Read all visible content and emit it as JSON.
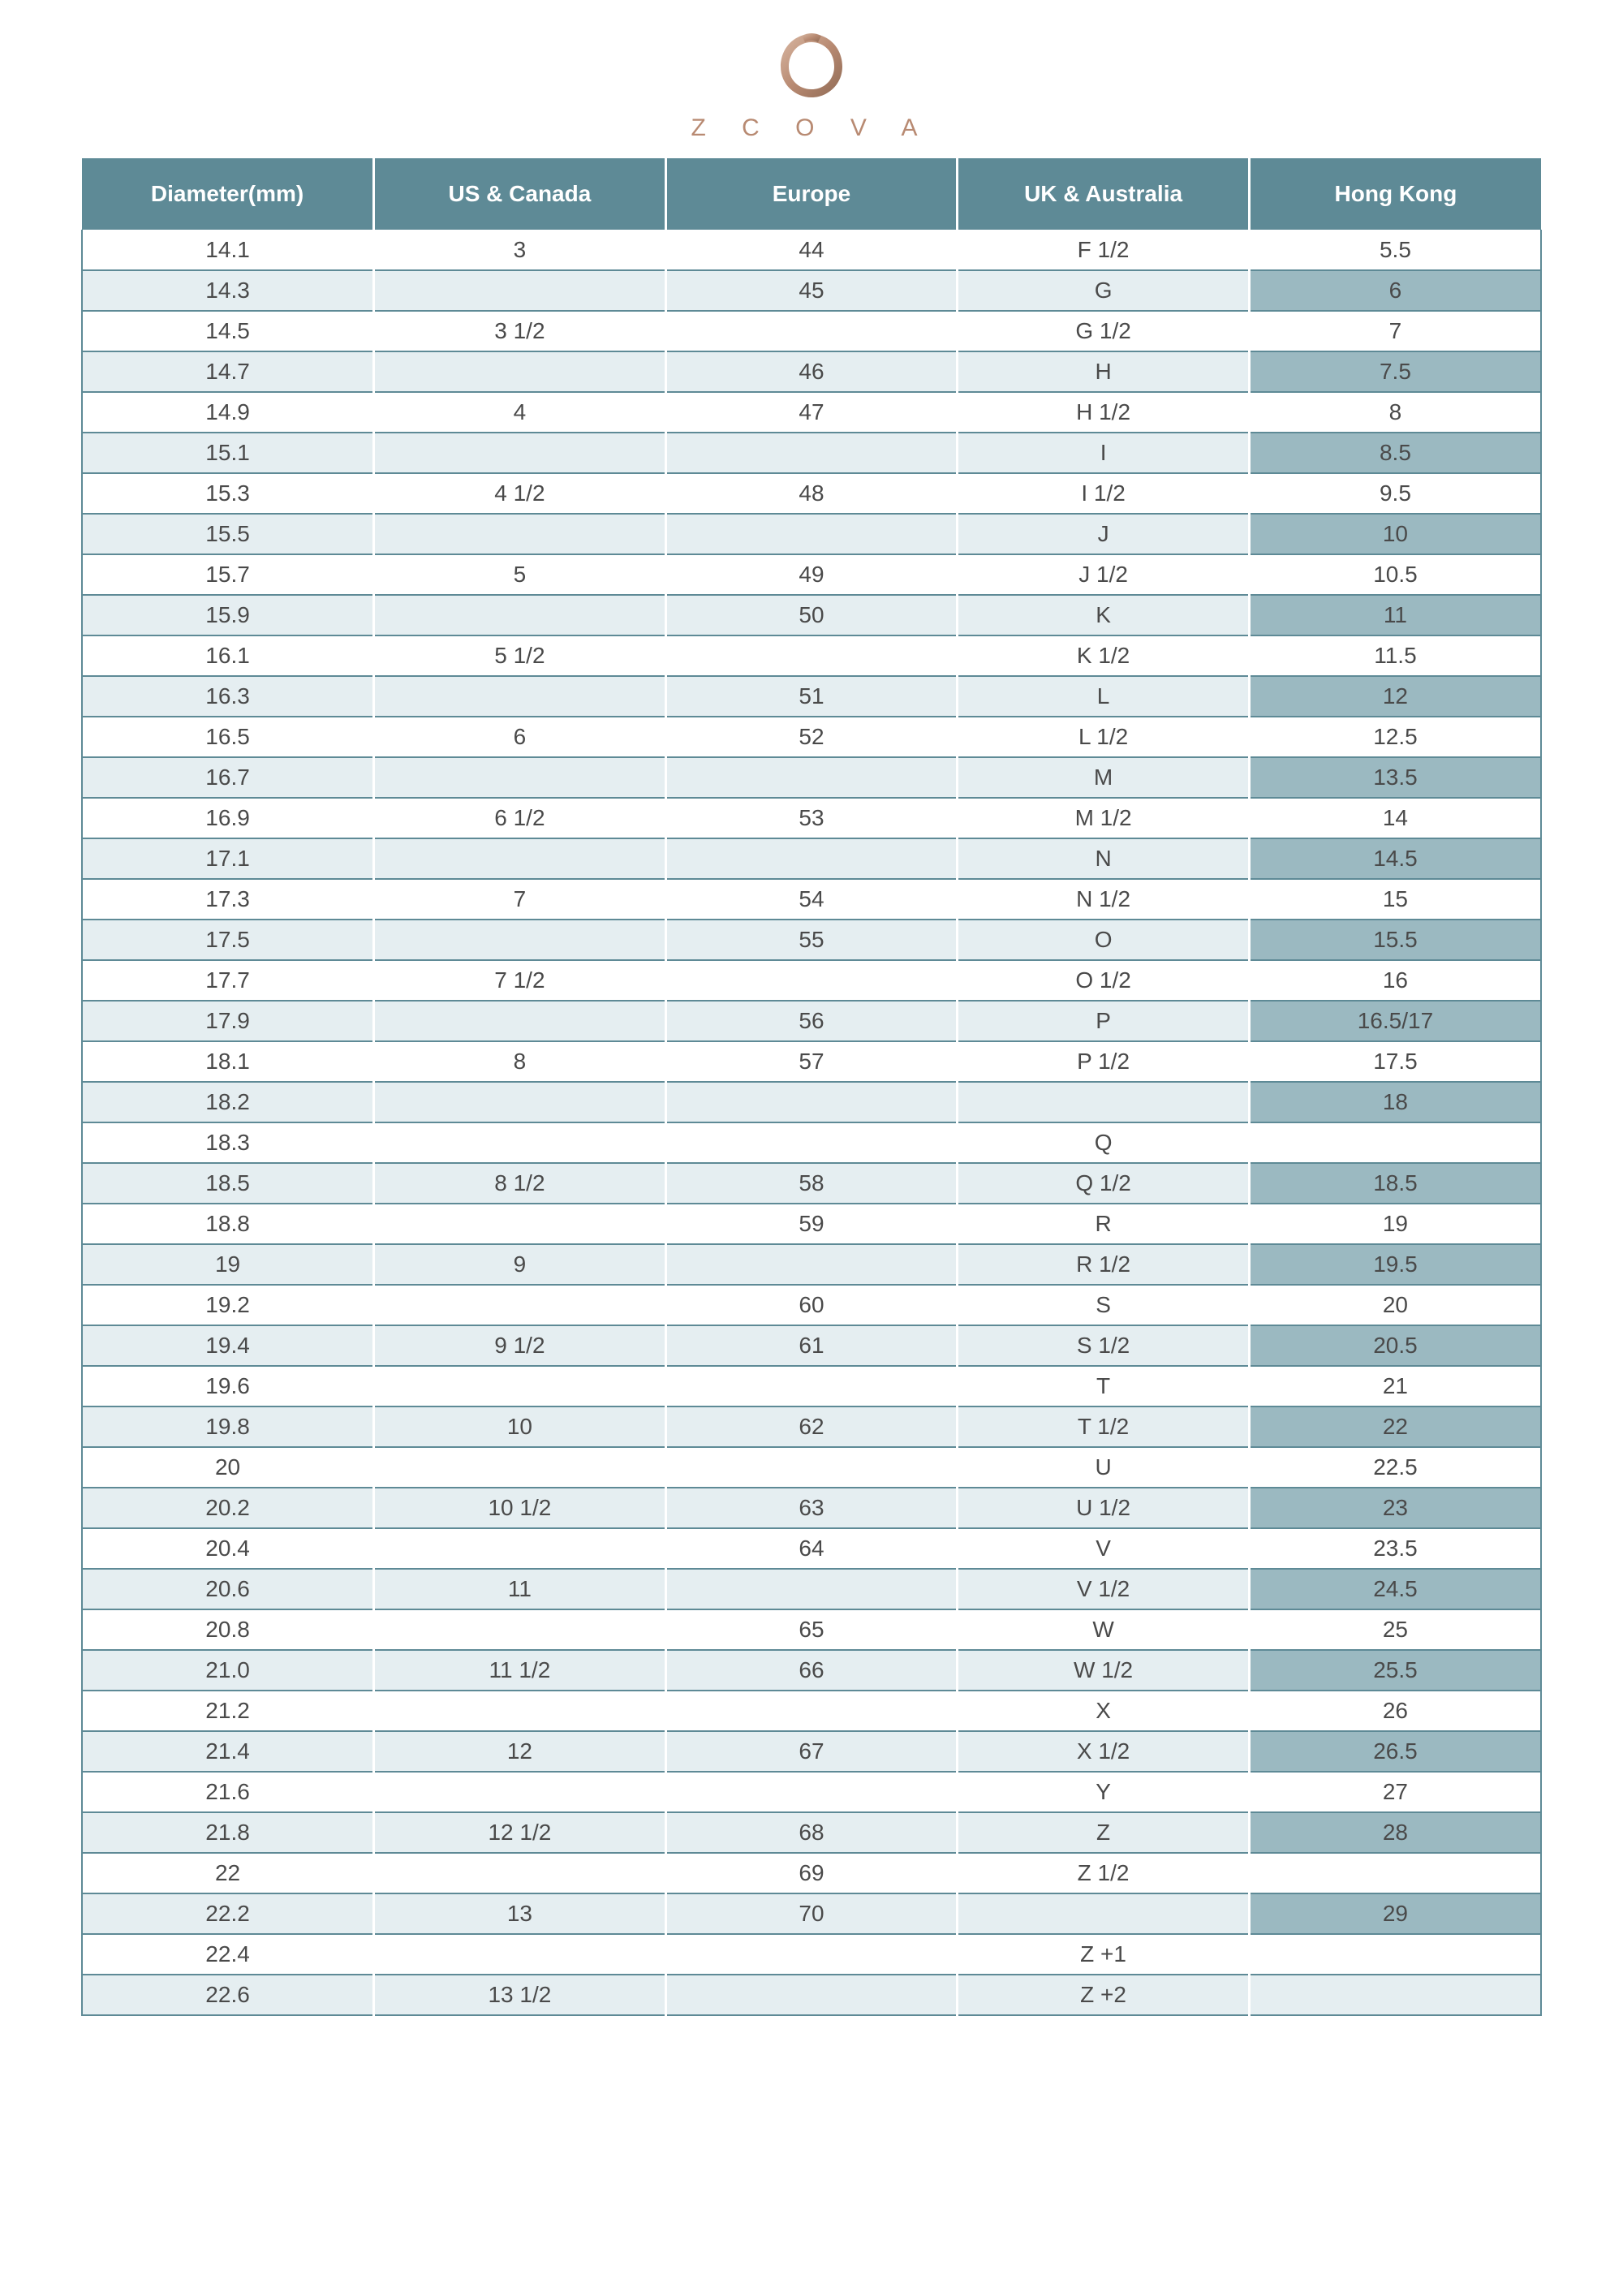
{
  "brand_text": "Z C O V A",
  "brand_color": "#b88a72",
  "colors": {
    "header_bg": "#5e8a96",
    "header_text": "#ffffff",
    "row_light": "#ffffff",
    "row_med": "#e5eef1",
    "row_dark": "#9bb9c1",
    "border": "#5e8a96",
    "text": "#4a4a4a",
    "cell_border": "#ffffff",
    "outer_border": "#5e8a96"
  },
  "font": {
    "header_size": 28,
    "cell_size": 28,
    "brand_size": 30,
    "brand_letter_spacing": 18
  },
  "columns": [
    "Diameter(mm)",
    "US & Canada",
    "Europe",
    "UK & Australia",
    "Hong Kong"
  ],
  "column_keys": [
    "dia",
    "us",
    "eu",
    "uk",
    "hk"
  ],
  "rows": [
    {
      "dia": "14.1",
      "us": "3",
      "eu": "44",
      "uk": "F  1/2",
      "hk": "5.5",
      "shade": 0
    },
    {
      "dia": "14.3",
      "us": "",
      "eu": "45",
      "uk": "G",
      "hk": "6",
      "shade": 2
    },
    {
      "dia": "14.5",
      "us": "3  1/2",
      "eu": "",
      "uk": "G  1/2",
      "hk": "7",
      "shade": 0
    },
    {
      "dia": "14.7",
      "us": "",
      "eu": "46",
      "uk": "H",
      "hk": "7.5",
      "shade": 2
    },
    {
      "dia": "14.9",
      "us": "4",
      "eu": "47",
      "uk": "H  1/2",
      "hk": "8",
      "shade": 0
    },
    {
      "dia": "15.1",
      "us": "",
      "eu": "",
      "uk": "I",
      "hk": "8.5",
      "shade": 2
    },
    {
      "dia": "15.3",
      "us": "4  1/2",
      "eu": "48",
      "uk": "I   1/2",
      "hk": "9.5",
      "shade": 0
    },
    {
      "dia": "15.5",
      "us": "",
      "eu": "",
      "uk": "J",
      "hk": "10",
      "shade": 2
    },
    {
      "dia": "15.7",
      "us": "5",
      "eu": "49",
      "uk": "J   1/2",
      "hk": "10.5",
      "shade": 0
    },
    {
      "dia": "15.9",
      "us": "",
      "eu": "50",
      "uk": "K",
      "hk": "11",
      "shade": 2
    },
    {
      "dia": "16.1",
      "us": "5  1/2",
      "eu": "",
      "uk": "K  1/2",
      "hk": "11.5",
      "shade": 0
    },
    {
      "dia": "16.3",
      "us": "",
      "eu": "51",
      "uk": "L",
      "hk": "12",
      "shade": 2
    },
    {
      "dia": "16.5",
      "us": "6",
      "eu": "52",
      "uk": "L   1/2",
      "hk": "12.5",
      "shade": 0
    },
    {
      "dia": "16.7",
      "us": "",
      "eu": "",
      "uk": "M",
      "hk": "13.5",
      "shade": 2
    },
    {
      "dia": "16.9",
      "us": "6  1/2",
      "eu": "53",
      "uk": "M 1/2",
      "hk": "14",
      "shade": 0
    },
    {
      "dia": "17.1",
      "us": "",
      "eu": "",
      "uk": "N",
      "hk": "14.5",
      "shade": 2
    },
    {
      "dia": "17.3",
      "us": "7",
      "eu": "54",
      "uk": "N  1/2",
      "hk": "15",
      "shade": 0
    },
    {
      "dia": "17.5",
      "us": "",
      "eu": "55",
      "uk": "O",
      "hk": "15.5",
      "shade": 2
    },
    {
      "dia": "17.7",
      "us": "7  1/2",
      "eu": "",
      "uk": "O 1/2",
      "hk": "16",
      "shade": 0
    },
    {
      "dia": "17.9",
      "us": "",
      "eu": "56",
      "uk": "P",
      "hk": "16.5/17",
      "shade": 2
    },
    {
      "dia": "18.1",
      "us": "8",
      "eu": "57",
      "uk": "P  1/2",
      "hk": "17.5",
      "shade": 0
    },
    {
      "dia": "18.2",
      "us": "",
      "eu": "",
      "uk": "",
      "hk": "18",
      "shade": 2
    },
    {
      "dia": "18.3",
      "us": "",
      "eu": "",
      "uk": "Q",
      "hk": "",
      "shade": 0
    },
    {
      "dia": "18.5",
      "us": "8  1/2",
      "eu": "58",
      "uk": "Q 1/2",
      "hk": "18.5",
      "shade": 2
    },
    {
      "dia": "18.8",
      "us": "",
      "eu": "59",
      "uk": "R",
      "hk": "19",
      "shade": 0
    },
    {
      "dia": "19",
      "us": "9",
      "eu": "",
      "uk": "R  1/2",
      "hk": "19.5",
      "shade": 2
    },
    {
      "dia": "19.2",
      "us": "",
      "eu": "60",
      "uk": "S",
      "hk": "20",
      "shade": 0
    },
    {
      "dia": "19.4",
      "us": "9  1/2",
      "eu": "61",
      "uk": "S  1/2",
      "hk": "20.5",
      "shade": 2
    },
    {
      "dia": "19.6",
      "us": "",
      "eu": "",
      "uk": "T",
      "hk": "21",
      "shade": 0
    },
    {
      "dia": "19.8",
      "us": "10",
      "eu": "62",
      "uk": "T  1/2",
      "hk": "22",
      "shade": 2
    },
    {
      "dia": "20",
      "us": "",
      "eu": "",
      "uk": "U",
      "hk": "22.5",
      "shade": 0
    },
    {
      "dia": "20.2",
      "us": "10   1/2",
      "eu": "63",
      "uk": "U  1/2",
      "hk": "23",
      "shade": 2
    },
    {
      "dia": "20.4",
      "us": "",
      "eu": "64",
      "uk": "V",
      "hk": "23.5",
      "shade": 0
    },
    {
      "dia": "20.6",
      "us": "11",
      "eu": "",
      "uk": "V  1/2",
      "hk": "24.5",
      "shade": 2
    },
    {
      "dia": "20.8",
      "us": "",
      "eu": "65",
      "uk": "W",
      "hk": "25",
      "shade": 0
    },
    {
      "dia": "21.0",
      "us": "11   1/2",
      "eu": "66",
      "uk": "W 1/2",
      "hk": "25.5",
      "shade": 2
    },
    {
      "dia": "21.2",
      "us": "",
      "eu": "",
      "uk": "X",
      "hk": "26",
      "shade": 0
    },
    {
      "dia": "21.4",
      "us": "12",
      "eu": "67",
      "uk": "X  1/2",
      "hk": "26.5",
      "shade": 2
    },
    {
      "dia": "21.6",
      "us": "",
      "eu": "",
      "uk": "Y",
      "hk": "27",
      "shade": 0
    },
    {
      "dia": "21.8",
      "us": "12   1/2",
      "eu": "68",
      "uk": "Z",
      "hk": "28",
      "shade": 2
    },
    {
      "dia": "22",
      "us": "",
      "eu": "69",
      "uk": "Z  1/2",
      "hk": "",
      "shade": 0
    },
    {
      "dia": "22.2",
      "us": "13",
      "eu": "70",
      "uk": "",
      "hk": "29",
      "shade": 2
    },
    {
      "dia": "22.4",
      "us": "",
      "eu": "",
      "uk": "Z  +1",
      "hk": "",
      "shade": 0
    },
    {
      "dia": "22.6",
      "us": "13   1/2",
      "eu": "",
      "uk": "Z  +2",
      "hk": "",
      "shade": 1
    }
  ],
  "shade_map": {
    "0": "row_light",
    "1": "row_med",
    "2": "row_dark"
  },
  "body_shade_map": {
    "0": "row_light",
    "1": "row_med",
    "2": "row_med"
  }
}
